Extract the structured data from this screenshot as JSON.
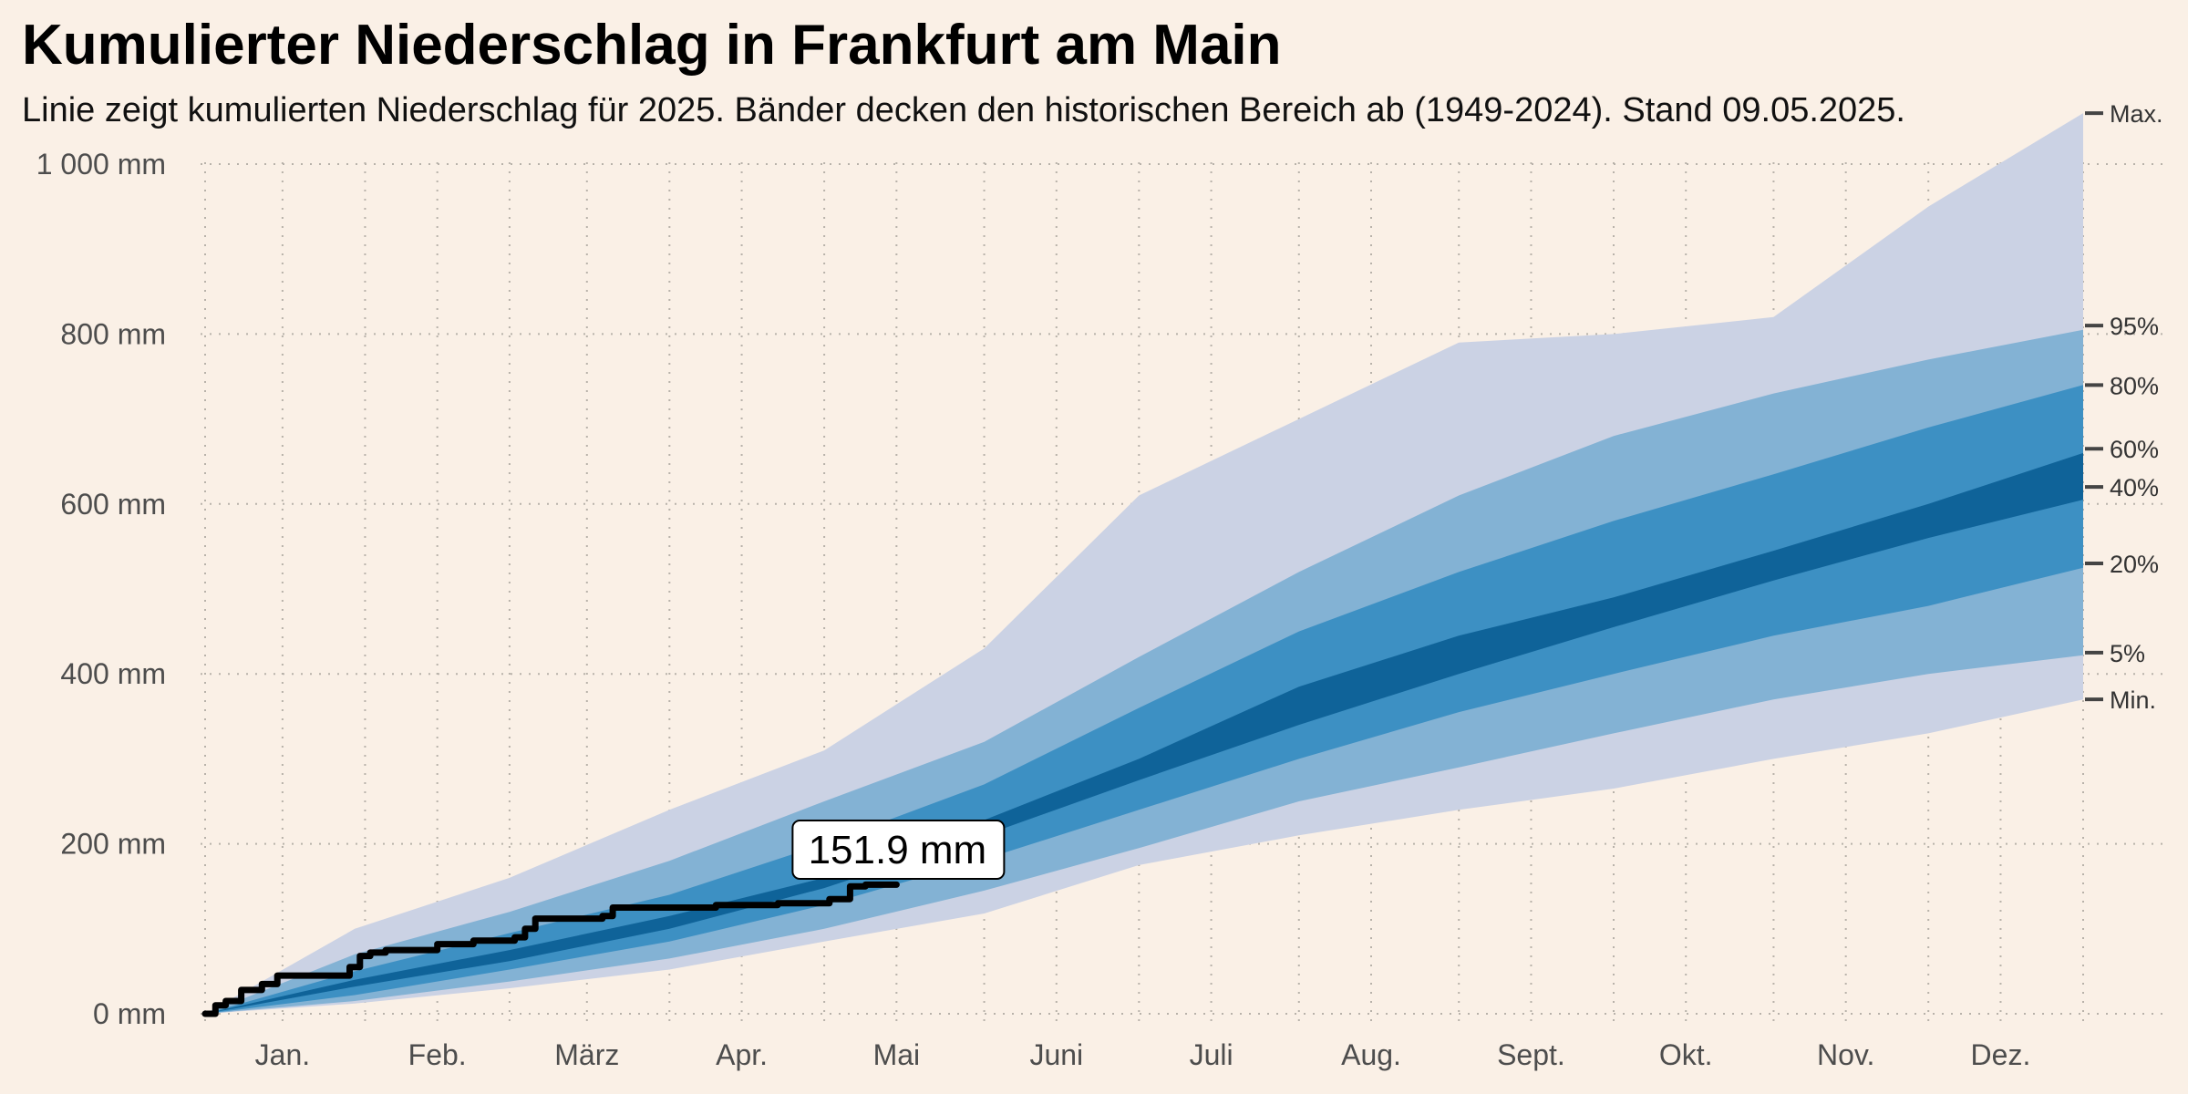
{
  "title": "Kumulierter Niederschlag in Frankfurt am Main",
  "subtitle": "Linie zeigt kumulierten Niederschlag für 2025. Bänder decken den historischen Bereich ab (1949-2024). Stand 09.05.2025.",
  "colors": {
    "background": "#faf0e6",
    "band_outer": "#cbd2e4",
    "band_mid": "#83b2d4",
    "band_inner": "#3d90c3",
    "band_core": "#0f6399",
    "line": "#000000",
    "grid": "#b8b2aa"
  },
  "chart_data": {
    "type": "area",
    "title": "Kumulierter Niederschlag in Frankfurt am Main",
    "xlabel": "",
    "ylabel": "",
    "x_axis": "day of year",
    "xlim": [
      1,
      365
    ],
    "ylim": [
      0,
      1100
    ],
    "grid": true,
    "x_ticks": [
      {
        "label": "Jan.",
        "day": 16
      },
      {
        "label": "Feb.",
        "day": 46
      },
      {
        "label": "März",
        "day": 75
      },
      {
        "label": "Apr.",
        "day": 105
      },
      {
        "label": "Mai",
        "day": 135
      },
      {
        "label": "Juni",
        "day": 166
      },
      {
        "label": "Juli",
        "day": 196
      },
      {
        "label": "Aug.",
        "day": 227
      },
      {
        "label": "Sept.",
        "day": 258
      },
      {
        "label": "Okt.",
        "day": 288
      },
      {
        "label": "Nov.",
        "day": 319
      },
      {
        "label": "Dez.",
        "day": 349
      }
    ],
    "y_ticks": [
      {
        "label": "0 mm",
        "value": 0
      },
      {
        "label": "200 mm",
        "value": 200
      },
      {
        "label": "400 mm",
        "value": 400
      },
      {
        "label": "600 mm",
        "value": 600
      },
      {
        "label": "800 mm",
        "value": 800
      },
      {
        "label": "1 000 mm",
        "value": 1000
      }
    ],
    "band_days": [
      1,
      30,
      60,
      91,
      121,
      152,
      182,
      213,
      244,
      274,
      305,
      335,
      365
    ],
    "bands": {
      "min": [
        0,
        12,
        30,
        52,
        85,
        118,
        175,
        210,
        240,
        265,
        300,
        330,
        370
      ],
      "p5": [
        0,
        15,
        38,
        65,
        100,
        145,
        195,
        250,
        290,
        330,
        370,
        400,
        422
      ],
      "p20": [
        0,
        22,
        52,
        85,
        128,
        182,
        240,
        300,
        355,
        400,
        445,
        480,
        525
      ],
      "p40": [
        0,
        32,
        62,
        100,
        148,
        210,
        275,
        340,
        400,
        455,
        510,
        560,
        605
      ],
      "p60": [
        0,
        40,
        75,
        115,
        160,
        228,
        300,
        385,
        445,
        490,
        545,
        600,
        660
      ],
      "p80": [
        0,
        50,
        95,
        140,
        200,
        270,
        360,
        450,
        520,
        580,
        635,
        690,
        740
      ],
      "p95": [
        0,
        70,
        120,
        180,
        250,
        320,
        420,
        520,
        610,
        680,
        730,
        770,
        805
      ],
      "max": [
        0,
        100,
        160,
        240,
        310,
        430,
        610,
        700,
        790,
        800,
        820,
        950,
        1060
      ]
    },
    "band_labels": [
      {
        "label": "Max.",
        "value": 1060
      },
      {
        "label": "95%",
        "value": 810
      },
      {
        "label": "80%",
        "value": 740
      },
      {
        "label": "60%",
        "value": 665
      },
      {
        "label": "40%",
        "value": 620
      },
      {
        "label": "20%",
        "value": 530
      },
      {
        "label": "5%",
        "value": 425
      },
      {
        "label": "Min.",
        "value": 370
      }
    ],
    "series": [
      {
        "days": [
          1,
          3,
          5,
          8,
          12,
          15,
          20,
          28,
          29,
          31,
          33,
          36,
          44,
          46,
          53,
          59,
          61,
          63,
          65,
          70,
          74,
          78,
          80,
          86,
          92,
          100,
          108,
          112,
          117,
          122,
          126,
          129
        ],
        "values": [
          0,
          10,
          15,
          28,
          35,
          45,
          45,
          45,
          55,
          68,
          72,
          75,
          75,
          82,
          86,
          86,
          90,
          100,
          112,
          112,
          112,
          115,
          125,
          125,
          125,
          128,
          128,
          130,
          130,
          135,
          150,
          151.9
        ]
      }
    ],
    "annotations": [
      {
        "text": "151.9 mm",
        "day": 129,
        "value": 151.9
      }
    ]
  }
}
